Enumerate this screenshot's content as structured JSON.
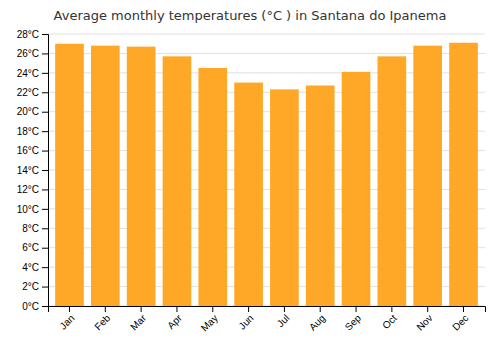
{
  "chart_data": {
    "type": "bar",
    "title": "Average monthly temperatures (°C ) in Santana do Ipanema",
    "categories": [
      "Jan",
      "Feb",
      "Mar",
      "Apr",
      "May",
      "Jun",
      "Jul",
      "Aug",
      "Sep",
      "Oct",
      "Nov",
      "Dec"
    ],
    "values": [
      27.0,
      26.8,
      26.7,
      25.7,
      24.5,
      23.0,
      22.3,
      22.7,
      24.1,
      25.7,
      26.8,
      27.1
    ],
    "color": "#FFA726",
    "ylim": [
      0,
      28
    ],
    "yticks": [
      {
        "value": 0,
        "label": "0°C"
      },
      {
        "value": 2,
        "label": "2°C"
      },
      {
        "value": 4,
        "label": "4°C"
      },
      {
        "value": 6,
        "label": "6°C"
      },
      {
        "value": 8,
        "label": "8°C"
      },
      {
        "value": 10,
        "label": "10°C"
      },
      {
        "value": 12,
        "label": "12°C"
      },
      {
        "value": 14,
        "label": "14°C"
      },
      {
        "value": 16,
        "label": "16°C"
      },
      {
        "value": 18,
        "label": "18°C"
      },
      {
        "value": 20,
        "label": "20°C"
      },
      {
        "value": 22,
        "label": "22°C"
      },
      {
        "value": 24,
        "label": "24°C"
      },
      {
        "value": 26,
        "label": "26°C"
      },
      {
        "value": 28,
        "label": "28°C"
      }
    ],
    "grid": true
  }
}
